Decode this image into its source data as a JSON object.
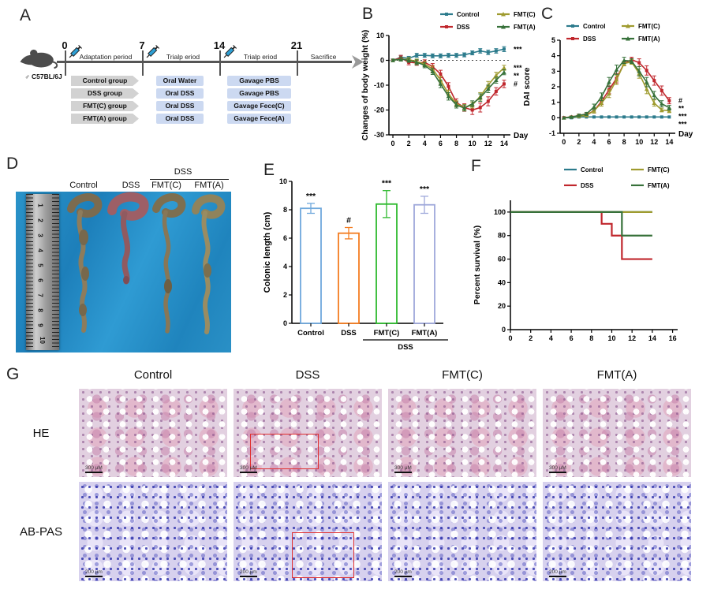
{
  "colors": {
    "control": "#2c7b8c",
    "dss": "#c0272d",
    "fmt_c": "#9f9b2f",
    "fmt_a": "#37713a",
    "bar_control": "#6fa8dc",
    "bar_dss": "#f47c20",
    "bar_fmt_c": "#2db92d",
    "bar_fmt_a": "#9fa8da",
    "highlight_box": "#e03030"
  },
  "panels": {
    "a": {
      "label": "A",
      "mouse_label": "♂ C57BL/6J",
      "ticks": [
        "0",
        "7",
        "14",
        "21"
      ],
      "segments": [
        "Adaptation period",
        "Trialp eriod",
        "Trialp eriod"
      ],
      "sacrifice": "Sacrifice",
      "rows": [
        {
          "group": "Control group",
          "phase2": "Oral Water",
          "phase3": "Gavage PBS"
        },
        {
          "group": "DSS group",
          "phase2": "Oral DSS",
          "phase3": "Gavage PBS"
        },
        {
          "group": "FMT(C) group",
          "phase2": "Oral DSS",
          "phase3": "Gavage Fece(C)"
        },
        {
          "group": "FMT(A) group",
          "phase2": "Oral DSS",
          "phase3": "Gavage Fece(A)"
        }
      ]
    },
    "b": {
      "label": "B"
    },
    "c": {
      "label": "C"
    },
    "d": {
      "label": "D",
      "column_labels": [
        "Control",
        "DSS",
        "FMT(C)",
        "FMT(A)"
      ],
      "overline_label": "DSS",
      "ruler_numbers": [
        "1",
        "2",
        "3",
        "4",
        "5",
        "6",
        "7",
        "8",
        "9",
        "10"
      ]
    },
    "e": {
      "label": "E"
    },
    "f": {
      "label": "F"
    },
    "g": {
      "label": "G",
      "columns": [
        "Control",
        "DSS",
        "FMT(C)",
        "FMT(A)"
      ],
      "row_labels": [
        "HE",
        "AB-PAS"
      ],
      "he_scalebar": "300 μM",
      "abpas_scalebar": "200 μm"
    }
  },
  "chart_data": [
    {
      "panel": "B",
      "type": "line",
      "title": "",
      "ylabel": "Changes of body weight (%)",
      "xlabel": "Day",
      "xlim": [
        -0.5,
        14.8
      ],
      "ylim": [
        -30,
        10
      ],
      "xticks": [
        0,
        2,
        4,
        6,
        8,
        10,
        12,
        14
      ],
      "yticks": [
        -30,
        -20,
        -10,
        0,
        10
      ],
      "dotted_y": 0,
      "legend_position": "top",
      "x": [
        0,
        1,
        2,
        3,
        4,
        5,
        6,
        7,
        8,
        9,
        10,
        11,
        12,
        13,
        14
      ],
      "series": [
        {
          "name": "Control",
          "color": "#2c7b8c",
          "marker": "square",
          "annotation": "***",
          "values": [
            0,
            1.2,
            0.8,
            2,
            2,
            1.8,
            1.8,
            2,
            2,
            2.2,
            3,
            3.8,
            3.2,
            3.8,
            4.5
          ],
          "err": [
            0.5,
            0.8,
            0.8,
            0.8,
            0.8,
            0.8,
            0.8,
            0.8,
            0.8,
            0.8,
            0.8,
            0.9,
            0.9,
            0.9,
            1
          ]
        },
        {
          "name": "DSS",
          "color": "#c0272d",
          "marker": "square",
          "annotation": "#",
          "values": [
            0,
            1,
            -0.8,
            -1,
            -0.8,
            -2.5,
            -5.5,
            -10.5,
            -17,
            -19,
            -20,
            -19,
            -16.5,
            -12.5,
            -9.5
          ],
          "err": [
            0.5,
            1,
            1,
            1,
            1,
            1.2,
            1.5,
            1.5,
            1.5,
            1.5,
            1.8,
            1.8,
            1.8,
            1.5,
            1.5
          ]
        },
        {
          "name": "FMT(C)",
          "color": "#9f9b2f",
          "marker": "triangle",
          "annotation": "***",
          "values": [
            0,
            0.5,
            0.3,
            -0.5,
            -1.5,
            -3.5,
            -8,
            -13.5,
            -17.5,
            -19,
            -18,
            -14.5,
            -10,
            -6,
            -3
          ],
          "err": [
            0.5,
            0.8,
            0.8,
            1,
            1,
            1.2,
            1.5,
            1.5,
            1.2,
            1.2,
            1.2,
            1.5,
            1.5,
            1.2,
            1
          ]
        },
        {
          "name": "FMT(A)",
          "color": "#37713a",
          "marker": "triangle",
          "annotation": "**",
          "values": [
            0,
            0.5,
            0,
            -0.8,
            -2,
            -4.5,
            -9.5,
            -14.5,
            -18,
            -19.2,
            -17.5,
            -15,
            -11.5,
            -8,
            -4.8
          ],
          "err": [
            0.5,
            0.8,
            0.8,
            1,
            1,
            1.2,
            1.5,
            1.5,
            1.2,
            1.2,
            1.2,
            1.5,
            1.5,
            1.2,
            1
          ]
        }
      ]
    },
    {
      "panel": "C",
      "type": "line",
      "title": "",
      "ylabel": "DAI score",
      "xlabel": "Day",
      "xlim": [
        -0.5,
        14.8
      ],
      "ylim": [
        -1,
        5
      ],
      "xticks": [
        0,
        2,
        4,
        6,
        8,
        10,
        12,
        14
      ],
      "yticks": [
        -1,
        0,
        1,
        2,
        3,
        4,
        5
      ],
      "legend_position": "top",
      "x": [
        0,
        1,
        2,
        3,
        4,
        5,
        6,
        7,
        8,
        9,
        10,
        11,
        12,
        13,
        14
      ],
      "series": [
        {
          "name": "Control",
          "color": "#2c7b8c",
          "marker": "square",
          "annotation": "***",
          "values": [
            0,
            0,
            0.05,
            0.05,
            0.05,
            0.05,
            0.05,
            0.05,
            0.05,
            0.05,
            0.05,
            0.05,
            0.05,
            0.05,
            0.05
          ],
          "err": [
            0,
            0,
            0,
            0,
            0,
            0,
            0,
            0,
            0,
            0,
            0,
            0,
            0,
            0,
            0
          ]
        },
        {
          "name": "DSS",
          "color": "#c0272d",
          "marker": "square",
          "annotation": "#",
          "values": [
            0,
            0.05,
            0.15,
            0.2,
            0.45,
            1.05,
            1.8,
            2.55,
            3.5,
            3.75,
            3.55,
            3.05,
            2.4,
            1.75,
            1.1
          ],
          "err": [
            0,
            0.05,
            0.08,
            0.08,
            0.15,
            0.2,
            0.25,
            0.3,
            0.15,
            0.15,
            0.25,
            0.3,
            0.3,
            0.3,
            0.2
          ]
        },
        {
          "name": "FMT(C)",
          "color": "#9f9b2f",
          "marker": "triangle",
          "annotation": "***",
          "values": [
            0,
            0.05,
            0.1,
            0.15,
            0.45,
            0.95,
            1.55,
            2.45,
            3.5,
            3.6,
            2.85,
            1.85,
            0.95,
            0.5,
            0.45
          ],
          "err": [
            0,
            0.05,
            0.08,
            0.08,
            0.15,
            0.2,
            0.25,
            0.3,
            0.15,
            0.15,
            0.3,
            0.3,
            0.2,
            0.12,
            0.12
          ]
        },
        {
          "name": "FMT(A)",
          "color": "#37713a",
          "marker": "triangle",
          "annotation": "**",
          "values": [
            0,
            0.05,
            0.15,
            0.25,
            0.7,
            1.35,
            2.3,
            3.1,
            3.7,
            3.65,
            3.0,
            2.3,
            1.45,
            0.9,
            0.65
          ],
          "err": [
            0,
            0.05,
            0.08,
            0.1,
            0.18,
            0.25,
            0.3,
            0.3,
            0.2,
            0.15,
            0.3,
            0.3,
            0.25,
            0.2,
            0.15
          ]
        }
      ]
    },
    {
      "panel": "E",
      "type": "bar",
      "title": "",
      "ylabel": "Colonic length (cm)",
      "xlabel": "",
      "ylim": [
        0,
        10
      ],
      "yticks": [
        0,
        2,
        4,
        6,
        8,
        10
      ],
      "categories": [
        "Control",
        "DSS",
        "FMT(C)",
        "FMT(A)"
      ],
      "values": [
        8.1,
        6.35,
        8.4,
        8.35
      ],
      "errors": [
        0.35,
        0.4,
        0.95,
        0.6
      ],
      "bar_colors": [
        "#6fa8dc",
        "#f47c20",
        "#2db92d",
        "#9fa8da"
      ],
      "annotations": [
        "***",
        "#",
        "***",
        "***"
      ],
      "group_label": "DSS",
      "group_span": [
        2,
        3
      ]
    },
    {
      "panel": "F",
      "type": "step",
      "title": "",
      "ylabel": "Percent survival (%)",
      "xlabel": "",
      "xlim": [
        0,
        16.5
      ],
      "ylim": [
        0,
        110
      ],
      "xticks": [
        0,
        2,
        4,
        6,
        8,
        10,
        12,
        14,
        16
      ],
      "yticks": [
        0,
        20,
        40,
        60,
        80,
        100
      ],
      "legend_position": "top",
      "series": [
        {
          "name": "Control",
          "color": "#2c7b8c",
          "points": [
            [
              0,
              100
            ],
            [
              14,
              100
            ]
          ]
        },
        {
          "name": "DSS",
          "color": "#c0272d",
          "points": [
            [
              0,
              100
            ],
            [
              9,
              100
            ],
            [
              9,
              90
            ],
            [
              10,
              90
            ],
            [
              10,
              80
            ],
            [
              11,
              80
            ],
            [
              11,
              60
            ],
            [
              14,
              60
            ]
          ]
        },
        {
          "name": "FMT(C)",
          "color": "#9f9b2f",
          "points": [
            [
              0,
              100
            ],
            [
              14,
              100
            ]
          ]
        },
        {
          "name": "FMT(A)",
          "color": "#37713a",
          "points": [
            [
              0,
              100
            ],
            [
              11,
              100
            ],
            [
              11,
              80
            ],
            [
              14,
              80
            ]
          ]
        }
      ]
    }
  ]
}
